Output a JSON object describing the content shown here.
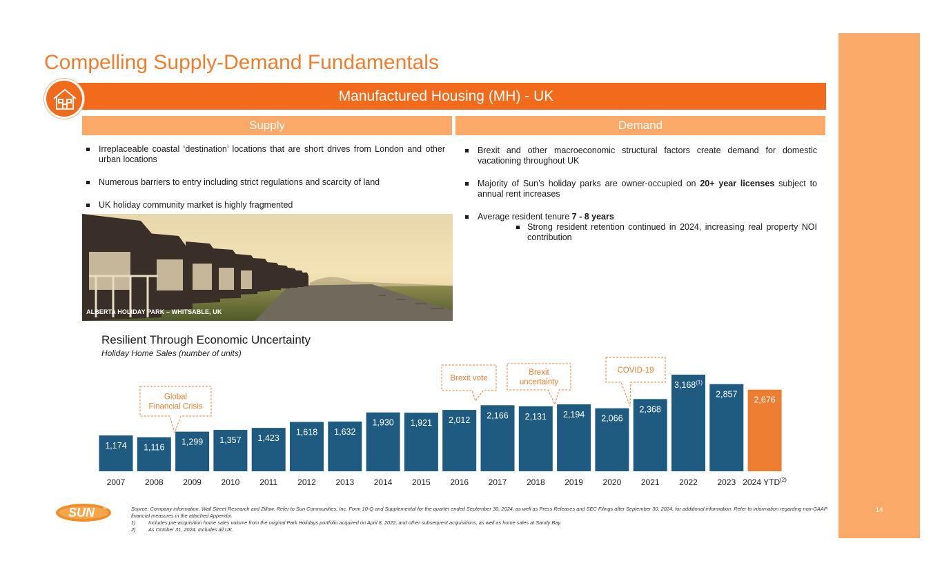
{
  "title": "Compelling Supply-Demand Fundamentals",
  "banner": "Manufactured Housing (MH) - UK",
  "supply": {
    "heading": "Supply",
    "bullets": [
      "Irreplaceable coastal ‘destination’ locations that are short drives from London and other urban locations",
      "Numerous barriers to entry including strict regulations and scarcity of land",
      "UK holiday community market is highly fragmented"
    ],
    "photo_caption": "ALBERTA HOLIDAY PARK – WHITSABLE, UK"
  },
  "demand": {
    "heading": "Demand",
    "b1": "Brexit and other macroeconomic structural factors create demand for domestic vacationing throughout UK",
    "b2_pre": "Majority of Sun’s holiday parks are owner-occupied on ",
    "b2_bold": "20+ year licenses",
    "b2_post": " subject to annual rent increases",
    "b3_pre": "Average resident tenure ",
    "b3_bold": "7 - 8 years",
    "b3_sub": "Strong resident retention continued in 2024, increasing real property NOI contribution"
  },
  "chart_title": "Resilient Through Economic Uncertainty",
  "chart_subtitle": "Holiday Home Sales (number of units)",
  "chart_data": {
    "type": "bar",
    "title": "Resilient Through Economic Uncertainty",
    "subtitle": "Holiday Home Sales (number of units)",
    "categories": [
      "2007",
      "2008",
      "2009",
      "2010",
      "2011",
      "2012",
      "2013",
      "2014",
      "2015",
      "2016",
      "2017",
      "2018",
      "2019",
      "2020",
      "2021",
      "2022",
      "2023",
      "2024 YTD"
    ],
    "values": [
      1174,
      1116,
      1299,
      1357,
      1423,
      1618,
      1632,
      1930,
      1921,
      2012,
      2166,
      2131,
      2194,
      2066,
      2368,
      3168,
      2857,
      2676
    ],
    "labels": [
      "1,174",
      "1,116",
      "1,299",
      "1,357",
      "1,423",
      "1,618",
      "1,632",
      "1,930",
      "1,921",
      "2,012",
      "2,166",
      "2,131",
      "2,194",
      "2,066",
      "2,368",
      "3,168",
      "2,857",
      "2,676"
    ],
    "label_sups": {
      "2022": "(1)",
      "2024 YTD": "(2)"
    },
    "highlight": "2024 YTD",
    "ylim": [
      0,
      3200
    ],
    "grid": false,
    "colors": {
      "bar": "#1f5a80",
      "highlight": "#ed7d31"
    },
    "annotations": [
      {
        "lines": [
          "Global",
          "Financial Crisis"
        ],
        "target": "2008"
      },
      {
        "lines": [
          "Brexit vote"
        ],
        "target": "2016"
      },
      {
        "lines": [
          "Brexit",
          "uncertainty"
        ],
        "target": "2018"
      },
      {
        "lines": [
          "COVID-19"
        ],
        "target": "2021"
      }
    ],
    "annotation_color": "#ed7d31"
  },
  "footnotes": {
    "source": "Source: Company information, Wall Street Research and Zillow. Refer to Sun Communities, Inc. Form 10-Q and Supplemental for the quarter ended September 30, 2024, as well as Press Releases and SEC Filings after September 30, 2024, for additional information. Refer to information regarding non-GAAP financial measures in the attached Appendix.",
    "notes": [
      {
        "num": "1)",
        "text": "Includes pre-acquisition home sales volume from the original Park Holidays portfolio acquired on April 8, 2022, and other subsequent acquisitions, as well as home sales at Sandy Bay."
      },
      {
        "num": "2)",
        "text": "As October 31, 2024. Includes all UK."
      }
    ]
  },
  "logo_text": "SUN",
  "logo_tm": "TM",
  "page_number": "14"
}
